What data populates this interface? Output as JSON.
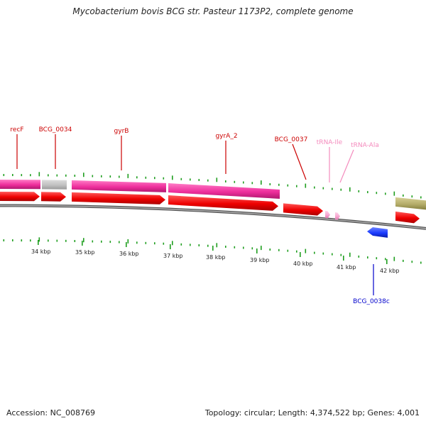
{
  "title": "Mycobacterium bovis BCG str. Pasteur 1173P2, complete genome",
  "footer": {
    "accession": "Accession: NC_008769",
    "summary": "Topology: circular; Length: 4,374,522 bp; Genes: 4,001"
  },
  "colors": {
    "gene_label": "#cc0000",
    "trna_label": "#f48bbd",
    "minus_label": "#0000cc",
    "cds": "#ee0000",
    "gene": "#ee2e9c",
    "pseudo_gene": "#c0c0c0",
    "trna": "#f7a8d1",
    "minus_cds": "#1a3bff",
    "other_feature": "#b5ad6a",
    "tick": "#1f9e1f",
    "backbone": "#8a8a8a"
  },
  "scale_labels": [
    "34 kbp",
    "35 kbp",
    "36 kbp",
    "37 kbp",
    "38 kbp",
    "39 kbp",
    "40 kbp",
    "41 kbp",
    "42 kbp"
  ],
  "feature_labels": [
    {
      "text": "recF",
      "kind": "gene"
    },
    {
      "text": "BCG_0034",
      "kind": "gene"
    },
    {
      "text": "gyrB",
      "kind": "gene"
    },
    {
      "text": "gyrA_2",
      "kind": "gene"
    },
    {
      "text": "BCG_0037",
      "kind": "gene"
    },
    {
      "text": "tRNA-Ile",
      "kind": "trna"
    },
    {
      "text": "tRNA-Ala",
      "kind": "trna"
    },
    {
      "text": "BCG_0038c",
      "kind": "minus"
    }
  ]
}
